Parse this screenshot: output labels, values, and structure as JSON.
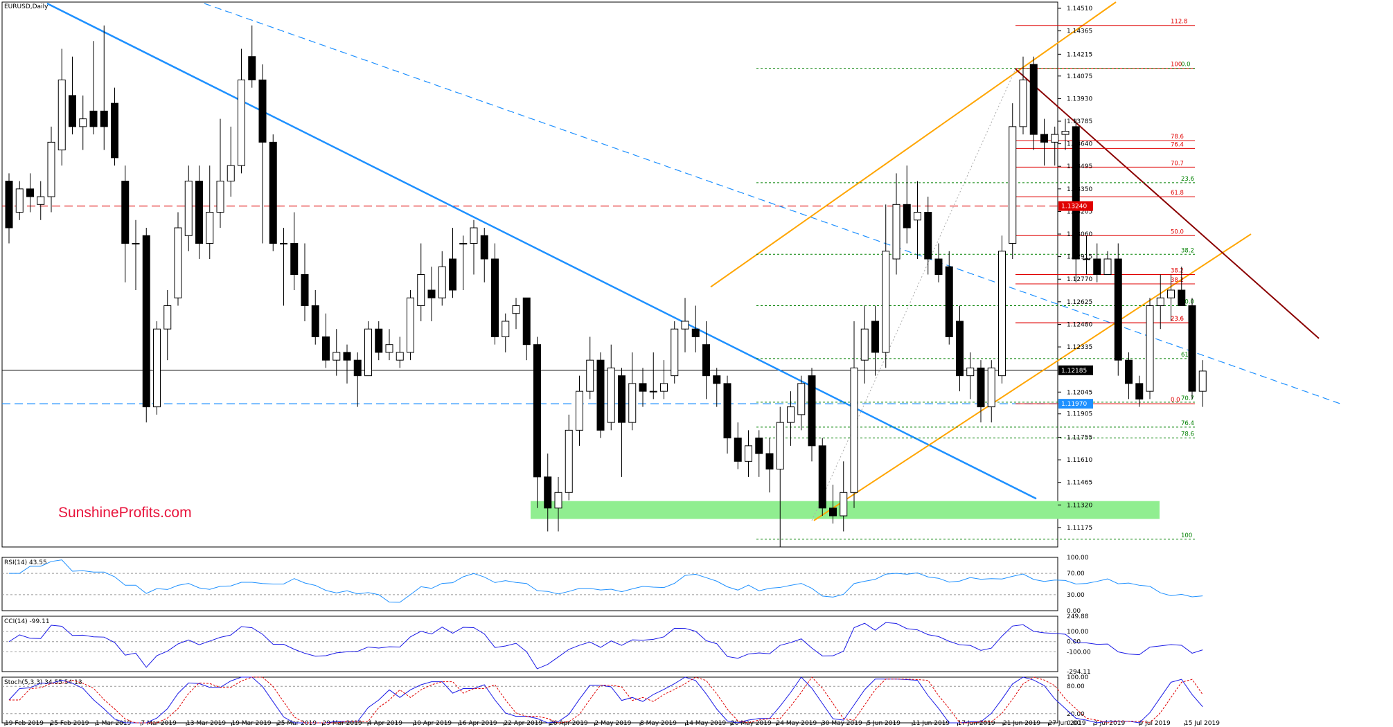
{
  "window": {
    "symbol_label": "EURUSD,Daily"
  },
  "branding": {
    "watermark": "SunshineProfits.com"
  },
  "colors": {
    "up_candle": "#ffffff",
    "down_candle": "#000000",
    "support_zone": "#90ee90",
    "downtrend_line": "#1e90ff",
    "channel": "#ffa500",
    "resistance_line": "#8b0000",
    "fib_red": "#e00000",
    "fib_green": "#008000",
    "red_dashed": "#e00000",
    "blue_dashed": "#1e90ff",
    "rsi_line": "#1e90ff",
    "cci_line": "#1a1ae6",
    "stoch_main": "#1a1ae6",
    "stoch_signal": "#e00000"
  },
  "price_axis": {
    "ticks": [
      "1.14510",
      "1.14365",
      "1.14215",
      "1.14075",
      "1.13930",
      "1.13785",
      "1.13640",
      "1.13495",
      "1.13350",
      "1.13205",
      "1.13060",
      "1.12915",
      "1.12770",
      "1.12625",
      "1.12480",
      "1.12335",
      "1.12045",
      "1.11905",
      "1.11755",
      "1.11610",
      "1.11465",
      "1.11320",
      "1.11175"
    ],
    "current_price": "1.12185",
    "red_level": "1.13240",
    "blue_level": "1.11970"
  },
  "date_axis": [
    "19 Feb 2019",
    "25 Feb 2019",
    "1 Mar 2019",
    "7 Mar 2019",
    "13 Mar 2019",
    "19 Mar 2019",
    "25 Mar 2019",
    "29 Mar 2019",
    "4 Apr 2019",
    "10 Apr 2019",
    "16 Apr 2019",
    "22 Apr 2019",
    "26 Apr 2019",
    "2 May 2019",
    "8 May 2019",
    "14 May 2019",
    "20 May 2019",
    "24 May 2019",
    "30 May 2019",
    "5 Jun 2019",
    "11 Jun 2019",
    "17 Jun 2019",
    "21 Jun 2019",
    "27 Jun 2019",
    "3 Jul 2019",
    "9 Jul 2019",
    "15 Jul 2019"
  ],
  "fibonacci": {
    "red_retracement": [
      "112.8",
      "100",
      "78.6",
      "76.4",
      "70.7",
      "61.8",
      "50.0",
      "38.2",
      "23.6",
      "0.0",
      "38.2",
      "23.6"
    ],
    "green_projection": [
      "0.0",
      "23.6",
      "38.2",
      "50.0",
      "61.8",
      "70.7",
      "76.4",
      "78.6",
      "100"
    ]
  },
  "indicators": {
    "rsi": {
      "label": "RSI(14) 43.55",
      "ticks": [
        "100.00",
        "70.00",
        "30.00",
        "0.00"
      ]
    },
    "cci": {
      "label": "CCI(14) -99.11",
      "ticks": [
        "249.88",
        "100.00",
        "0.00",
        "-100.00",
        "-294.11"
      ]
    },
    "stoch": {
      "label": "Stoch(5,3,3) 34.55 54.13",
      "ticks": [
        "100.00",
        "80.00",
        "20.00",
        "0.00"
      ]
    }
  },
  "chart_data": {
    "type": "candlestick",
    "title": "EURUSD,Daily",
    "ylim": [
      1.1105,
      1.1455
    ],
    "ohlc": [
      [
        1.134,
        1.1345,
        1.13,
        1.131
      ],
      [
        1.132,
        1.134,
        1.1315,
        1.1335
      ],
      [
        1.1335,
        1.1345,
        1.132,
        1.133
      ],
      [
        1.1325,
        1.134,
        1.1315,
        1.133
      ],
      [
        1.133,
        1.1375,
        1.132,
        1.1365
      ],
      [
        1.136,
        1.1425,
        1.135,
        1.1405
      ],
      [
        1.1395,
        1.142,
        1.137,
        1.1375
      ],
      [
        1.1375,
        1.1395,
        1.136,
        1.138
      ],
      [
        1.1385,
        1.143,
        1.137,
        1.1375
      ],
      [
        1.1385,
        1.144,
        1.136,
        1.1375
      ],
      [
        1.139,
        1.14,
        1.135,
        1.1355
      ],
      [
        1.134,
        1.135,
        1.1275,
        1.13
      ],
      [
        1.13,
        1.1315,
        1.127,
        1.13
      ],
      [
        1.1305,
        1.131,
        1.1185,
        1.1195
      ],
      [
        1.1195,
        1.125,
        1.119,
        1.1245
      ],
      [
        1.1245,
        1.127,
        1.1225,
        1.126
      ],
      [
        1.1265,
        1.132,
        1.126,
        1.131
      ],
      [
        1.1305,
        1.135,
        1.1295,
        1.134
      ],
      [
        1.134,
        1.135,
        1.129,
        1.13
      ],
      [
        1.13,
        1.135,
        1.129,
        1.132
      ],
      [
        1.132,
        1.138,
        1.131,
        1.134
      ],
      [
        1.134,
        1.1375,
        1.133,
        1.135
      ],
      [
        1.135,
        1.1425,
        1.1345,
        1.1405
      ],
      [
        1.142,
        1.144,
        1.14,
        1.1405
      ],
      [
        1.1405,
        1.1415,
        1.13,
        1.1365
      ],
      [
        1.1365,
        1.137,
        1.1295,
        1.13
      ],
      [
        1.13,
        1.131,
        1.126,
        1.13
      ],
      [
        1.13,
        1.132,
        1.127,
        1.128
      ],
      [
        1.128,
        1.13,
        1.125,
        1.126
      ],
      [
        1.126,
        1.127,
        1.1235,
        1.124
      ],
      [
        1.124,
        1.1255,
        1.122,
        1.1225
      ],
      [
        1.1225,
        1.1245,
        1.1215,
        1.123
      ],
      [
        1.123,
        1.1235,
        1.121,
        1.1225
      ],
      [
        1.1225,
        1.123,
        1.1195,
        1.1215
      ],
      [
        1.1215,
        1.125,
        1.1215,
        1.1245
      ],
      [
        1.1245,
        1.125,
        1.1225,
        1.123
      ],
      [
        1.123,
        1.1245,
        1.1225,
        1.1235
      ],
      [
        1.1225,
        1.124,
        1.122,
        1.123
      ],
      [
        1.123,
        1.127,
        1.1225,
        1.1265
      ],
      [
        1.126,
        1.13,
        1.125,
        1.128
      ],
      [
        1.127,
        1.1285,
        1.125,
        1.1265
      ],
      [
        1.1265,
        1.1295,
        1.126,
        1.1285
      ],
      [
        1.129,
        1.131,
        1.1265,
        1.127
      ],
      [
        1.13,
        1.1305,
        1.127,
        1.13
      ],
      [
        1.13,
        1.1315,
        1.128,
        1.131
      ],
      [
        1.1305,
        1.131,
        1.1275,
        1.129
      ],
      [
        1.129,
        1.13,
        1.1235,
        1.124
      ],
      [
        1.124,
        1.1255,
        1.123,
        1.125
      ],
      [
        1.1255,
        1.1265,
        1.1245,
        1.126
      ],
      [
        1.1265,
        1.1265,
        1.1225,
        1.1235
      ],
      [
        1.1235,
        1.124,
        1.113,
        1.115
      ],
      [
        1.115,
        1.1165,
        1.1115,
        1.113
      ],
      [
        1.113,
        1.115,
        1.1115,
        1.114
      ],
      [
        1.114,
        1.119,
        1.1135,
        1.118
      ],
      [
        1.118,
        1.1215,
        1.117,
        1.1205
      ],
      [
        1.1205,
        1.124,
        1.12,
        1.1225
      ],
      [
        1.1225,
        1.123,
        1.1175,
        1.118
      ],
      [
        1.1185,
        1.1235,
        1.118,
        1.122
      ],
      [
        1.1215,
        1.122,
        1.115,
        1.1185
      ],
      [
        1.1185,
        1.123,
        1.118,
        1.121
      ],
      [
        1.121,
        1.122,
        1.1195,
        1.1205
      ],
      [
        1.1205,
        1.123,
        1.12,
        1.1205
      ],
      [
        1.1205,
        1.1225,
        1.12,
        1.121
      ],
      [
        1.1215,
        1.125,
        1.121,
        1.1245
      ],
      [
        1.1245,
        1.1265,
        1.123,
        1.125
      ],
      [
        1.1245,
        1.126,
        1.123,
        1.124
      ],
      [
        1.1235,
        1.125,
        1.12,
        1.1215
      ],
      [
        1.1215,
        1.122,
        1.1195,
        1.121
      ],
      [
        1.121,
        1.1215,
        1.1165,
        1.1175
      ],
      [
        1.1175,
        1.1185,
        1.1155,
        1.116
      ],
      [
        1.116,
        1.118,
        1.115,
        1.117
      ],
      [
        1.1175,
        1.118,
        1.115,
        1.1165
      ],
      [
        1.1165,
        1.1175,
        1.114,
        1.1155
      ],
      [
        1.1155,
        1.1195,
        1.1105,
        1.1185
      ],
      [
        1.1185,
        1.1205,
        1.117,
        1.1195
      ],
      [
        1.119,
        1.1215,
        1.118,
        1.121
      ],
      [
        1.1215,
        1.122,
        1.116,
        1.117
      ],
      [
        1.117,
        1.1175,
        1.1125,
        1.113
      ],
      [
        1.113,
        1.1145,
        1.112,
        1.1125
      ],
      [
        1.1125,
        1.116,
        1.1115,
        1.114
      ],
      [
        1.114,
        1.125,
        1.113,
        1.122
      ],
      [
        1.1225,
        1.126,
        1.121,
        1.1245
      ],
      [
        1.125,
        1.126,
        1.1215,
        1.123
      ],
      [
        1.123,
        1.1325,
        1.122,
        1.1295
      ],
      [
        1.129,
        1.1345,
        1.128,
        1.1325
      ],
      [
        1.1325,
        1.135,
        1.13,
        1.131
      ],
      [
        1.1315,
        1.134,
        1.129,
        1.132
      ],
      [
        1.132,
        1.133,
        1.128,
        1.129
      ],
      [
        1.129,
        1.13,
        1.1275,
        1.128
      ],
      [
        1.1285,
        1.1295,
        1.1235,
        1.124
      ],
      [
        1.125,
        1.126,
        1.1205,
        1.1215
      ],
      [
        1.1215,
        1.123,
        1.12,
        1.122
      ],
      [
        1.122,
        1.1225,
        1.1185,
        1.1195
      ],
      [
        1.1195,
        1.1225,
        1.1185,
        1.122
      ],
      [
        1.1215,
        1.1305,
        1.121,
        1.1295
      ],
      [
        1.13,
        1.139,
        1.129,
        1.1375
      ],
      [
        1.1375,
        1.142,
        1.137,
        1.1405
      ],
      [
        1.1415,
        1.142,
        1.136,
        1.137
      ],
      [
        1.137,
        1.138,
        1.135,
        1.1365
      ],
      [
        1.1365,
        1.1375,
        1.135,
        1.137
      ],
      [
        1.137,
        1.138,
        1.136,
        1.1372
      ],
      [
        1.1375,
        1.138,
        1.1275,
        1.129
      ],
      [
        1.129,
        1.1305,
        1.128,
        1.129
      ],
      [
        1.129,
        1.13,
        1.1275,
        1.128
      ],
      [
        1.128,
        1.1295,
        1.128,
        1.129
      ],
      [
        1.129,
        1.13,
        1.1215,
        1.1225
      ],
      [
        1.1225,
        1.123,
        1.12,
        1.121
      ],
      [
        1.121,
        1.1215,
        1.1195,
        1.12
      ],
      [
        1.1205,
        1.1265,
        1.12,
        1.126
      ],
      [
        1.126,
        1.128,
        1.1245,
        1.1265
      ],
      [
        1.1265,
        1.128,
        1.125,
        1.127
      ],
      [
        1.127,
        1.1285,
        1.126,
        1.126
      ],
      [
        1.126,
        1.1265,
        1.12,
        1.1205
      ],
      [
        1.1205,
        1.1225,
        1.1195,
        1.1218
      ]
    ]
  }
}
